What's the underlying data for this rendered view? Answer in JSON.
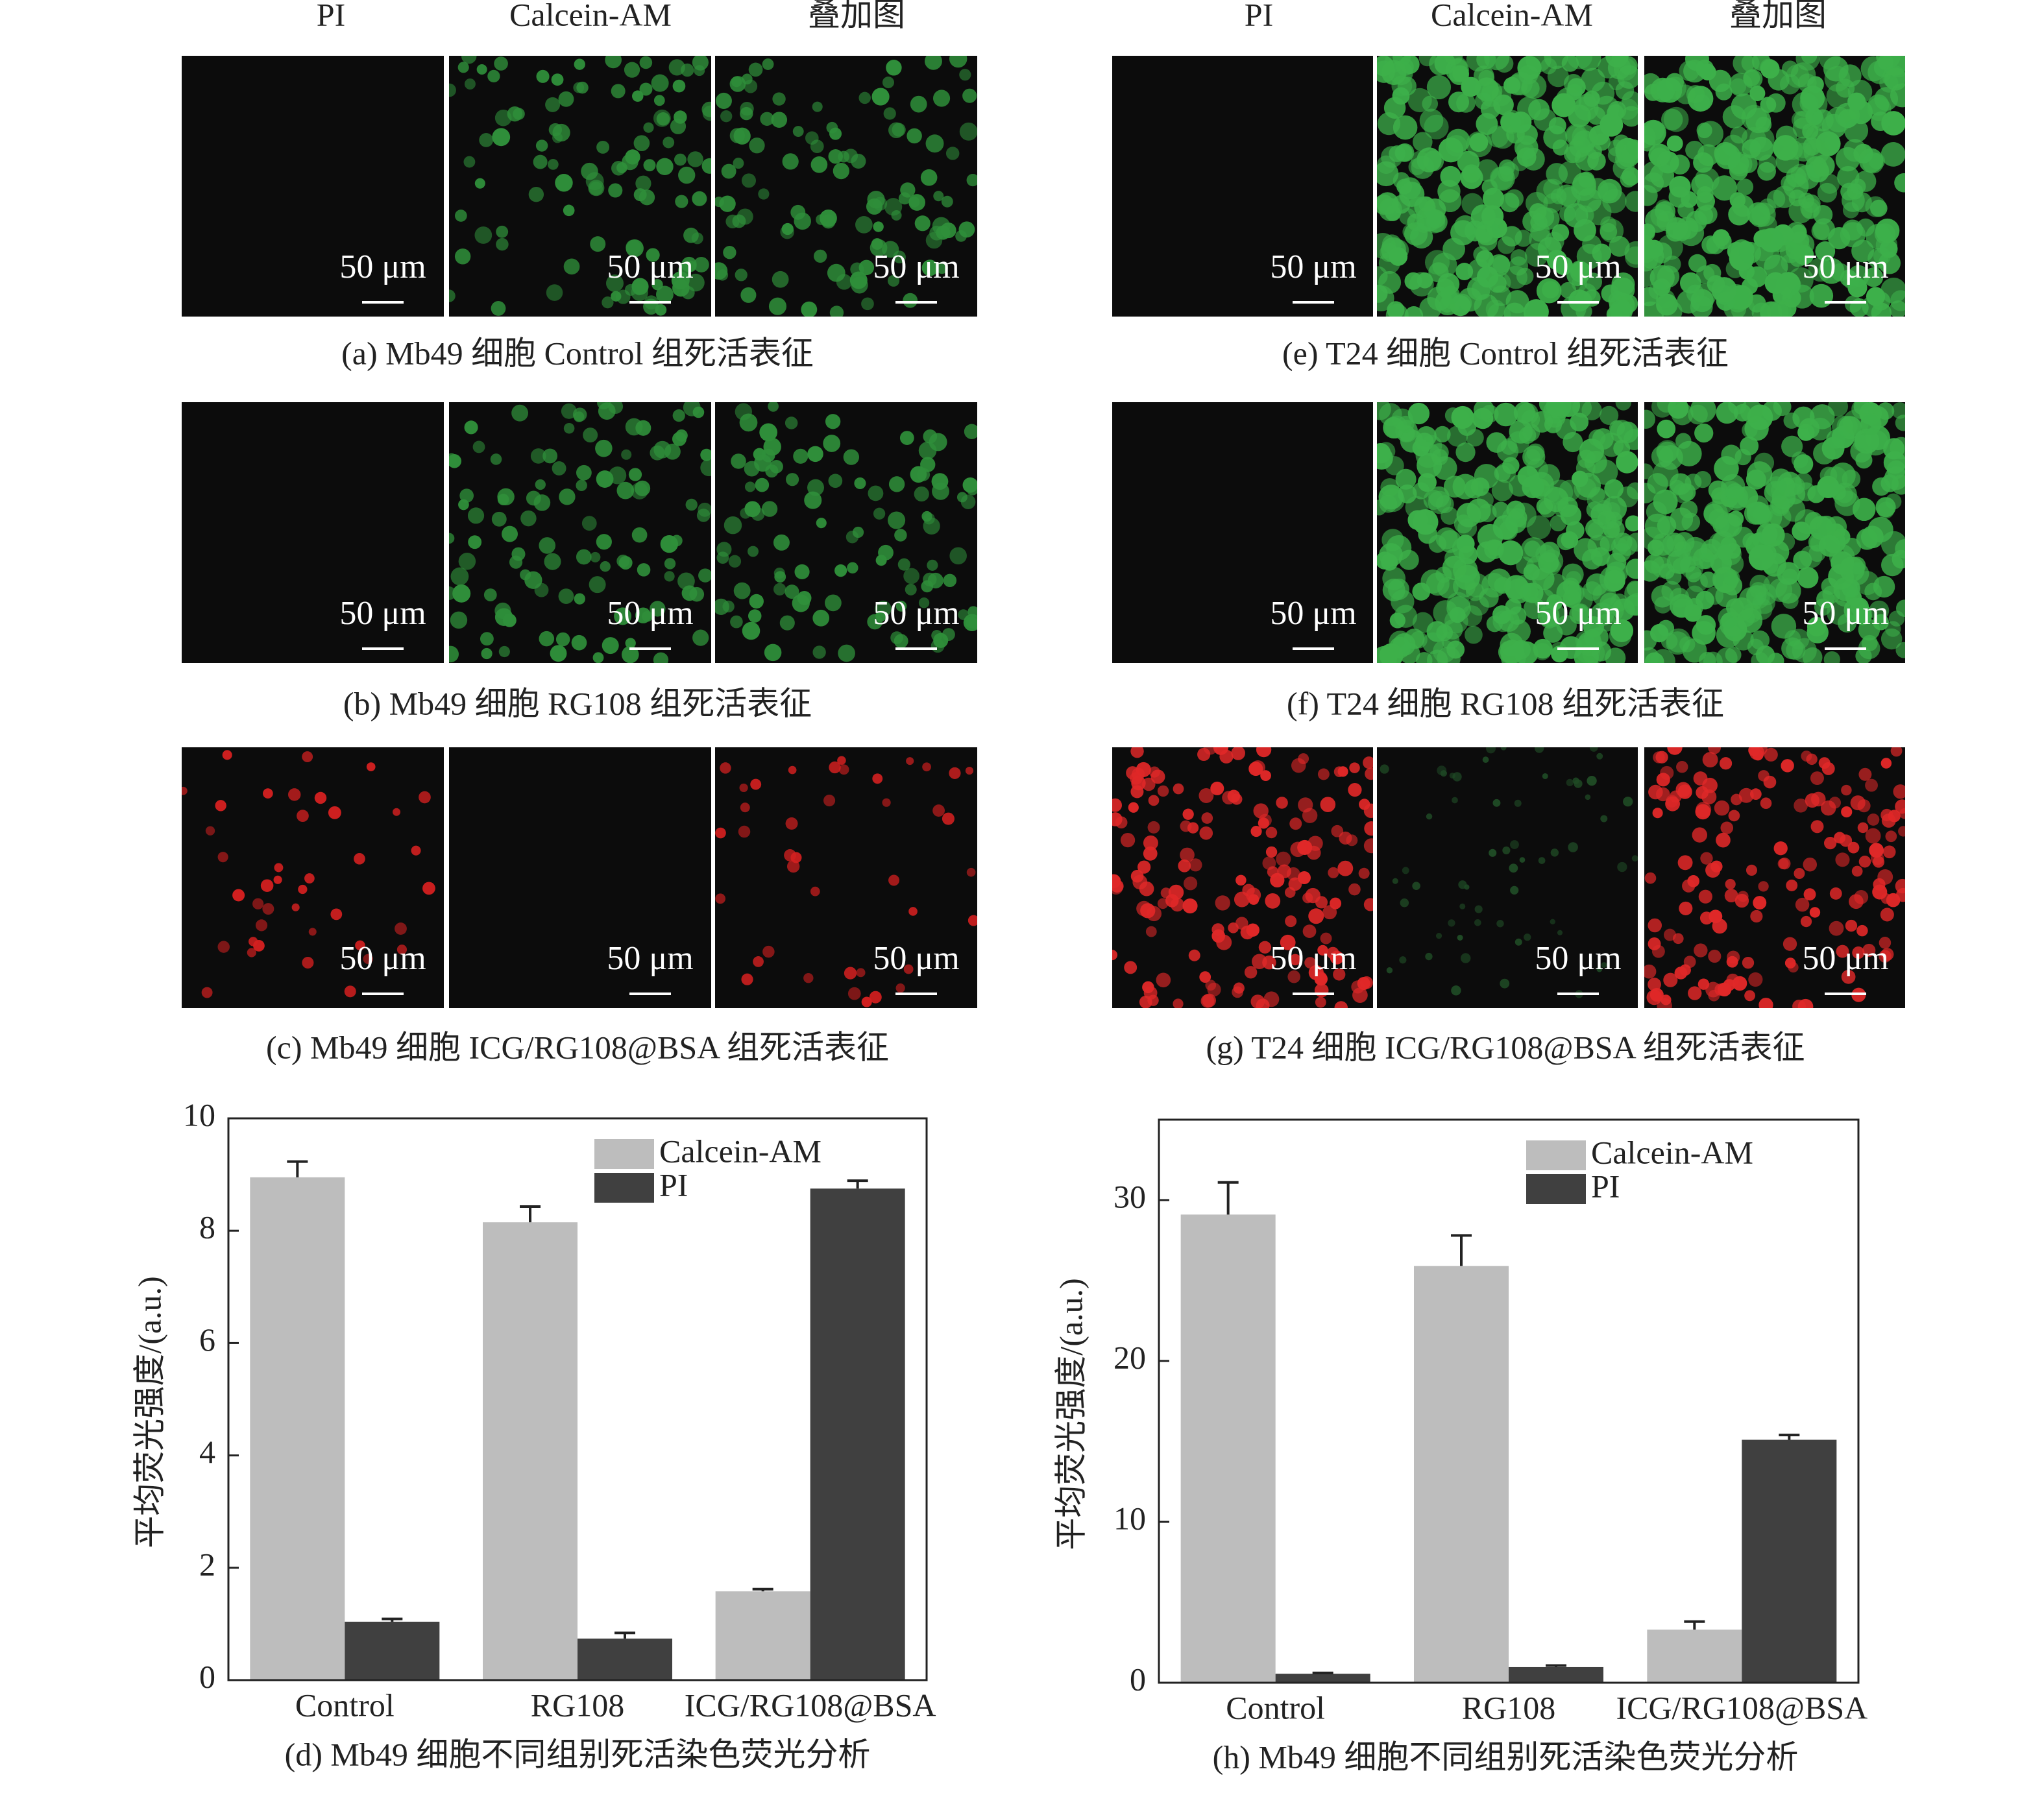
{
  "micrographs": {
    "column_headers": [
      "PI",
      "Calcein-AM",
      "叠加图"
    ],
    "scale_label": "50 μm",
    "captions": [
      "(a) Mb49 细胞 Control 组死活表征",
      "(b) Mb49 细胞 RG108 组死活表征",
      "(c) Mb49 细胞 ICG/RG108@BSA 组死活表征",
      "(e) T24 细胞 Control 组死活表征",
      "(f) T24 细胞 RG108 组死活表征",
      "(g) T24 细胞 ICG/RG108@BSA 组死活表征"
    ]
  },
  "chart_data": [
    {
      "type": "bar",
      "caption": "(d) Mb49 细胞不同组别死活染色荧光分析",
      "y_label": "平均荧光强度/(a.u.)",
      "categories": [
        "Control",
        "RG108",
        "ICG/RG108@BSA"
      ],
      "series": [
        {
          "name": "Calcein-AM",
          "color": "#bdbdbd",
          "values": [
            8.95,
            8.15,
            1.58
          ],
          "errors": [
            0.28,
            0.28,
            0.04
          ]
        },
        {
          "name": "PI",
          "color": "#404040",
          "values": [
            1.04,
            0.74,
            8.75
          ],
          "errors": [
            0.05,
            0.1,
            0.14
          ]
        }
      ],
      "ylim": [
        0,
        10
      ],
      "yticks": [
        0,
        2,
        4,
        6,
        8,
        10
      ],
      "legend": "upper right"
    },
    {
      "type": "bar",
      "caption": "(h) Mb49 细胞不同组别死活染色荧光分析",
      "y_label": "平均荧光强度/(a.u.)",
      "categories": [
        "Control",
        "RG108",
        "ICG/RG108@BSA"
      ],
      "series": [
        {
          "name": "Calcein-AM",
          "color": "#bdbdbd",
          "values": [
            29.1,
            25.9,
            3.3
          ],
          "errors": [
            2.0,
            1.9,
            0.5
          ]
        },
        {
          "name": "PI",
          "color": "#404040",
          "values": [
            0.56,
            0.97,
            15.1
          ],
          "errors": [
            0.05,
            0.1,
            0.3
          ]
        }
      ],
      "ylim": [
        0,
        35
      ],
      "yticks": [
        0,
        10,
        20,
        30
      ],
      "legend": "upper right"
    }
  ]
}
